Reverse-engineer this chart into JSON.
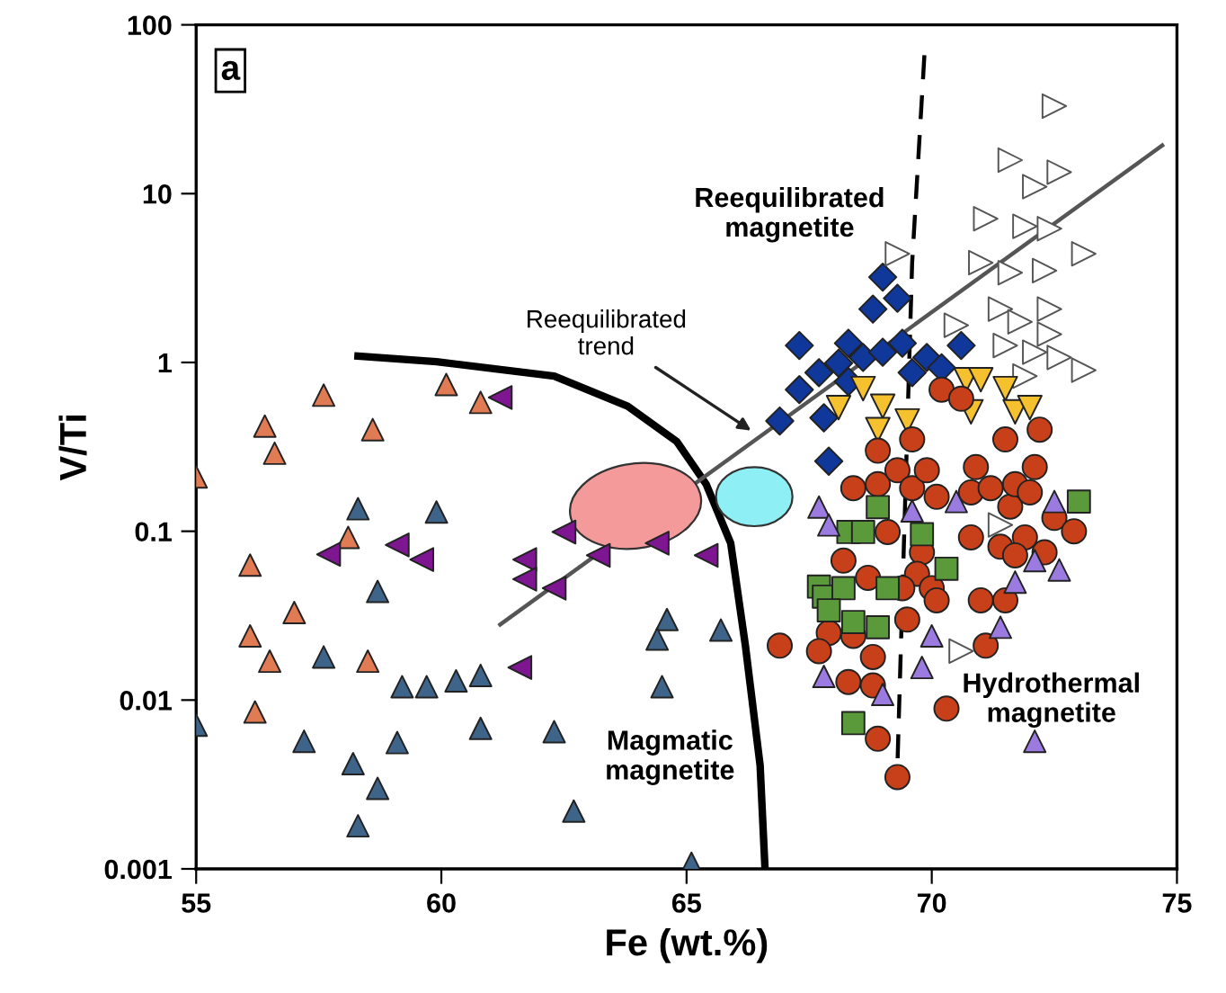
{
  "chart_data": {
    "type": "scatter",
    "xlabel": "Fe (wt.%)",
    "ylabel": "V/Ti",
    "log": "y",
    "xlim": [
      55,
      75
    ],
    "xticks": [
      55,
      60,
      65,
      70,
      75
    ],
    "ylim": [
      0.001,
      100
    ],
    "yticks": [
      0.001,
      0.01,
      0.1,
      1,
      10,
      100
    ],
    "grid": false,
    "legend": false,
    "annotations": [
      "a",
      {
        "text": "Reequilibrated\ntrend",
        "x": 66.4,
        "y": 0.38
      },
      "Reequilibrated\nmagnetite",
      "Magmatic\nmagnetite",
      "Hydrothermal\nmagnetite"
    ],
    "series": [
      {
        "type": "line",
        "color": "#000000",
        "line_style": "solid",
        "marker": "none",
        "x": [
          58.3,
          59.9,
          62.3,
          63.8,
          64.8,
          65.4,
          65.9,
          66.2,
          66.5,
          66.6
        ],
        "values": [
          1.09,
          1.01,
          0.83,
          0.55,
          0.34,
          0.19,
          0.085,
          0.021,
          0.0041,
          0.001
        ]
      },
      {
        "type": "line",
        "color": "#000000",
        "line_style": "dashed",
        "marker": "none",
        "x": [
          69.85,
          69.6,
          69.3
        ],
        "values": [
          66,
          3.9,
          0.0041
        ]
      },
      {
        "type": "line",
        "color": "#555555",
        "line_style": "solid",
        "marker": "none",
        "x": [
          61.2,
          74.7
        ],
        "values": [
          0.028,
          19.3
        ]
      },
      {
        "color": "#e07b53",
        "marker": "triangle",
        "x": [
          55.0,
          56.4,
          56.6,
          57.6,
          58.6,
          60.1,
          60.8,
          58.1,
          56.1,
          57.0,
          56.1,
          56.5,
          58.5,
          56.2
        ],
        "values": [
          0.21,
          0.42,
          0.29,
          0.64,
          0.4,
          0.74,
          0.58,
          0.092,
          0.063,
          0.033,
          0.024,
          0.017,
          0.017,
          0.0085
        ]
      },
      {
        "color": "#3f6489",
        "marker": "triangle",
        "x": [
          55.0,
          58.3,
          59.9,
          58.7,
          57.6,
          59.2,
          59.7,
          60.3,
          60.8,
          57.2,
          59.1,
          60.8,
          62.3,
          58.2,
          58.7,
          58.3,
          62.7,
          64.6,
          64.4,
          65.7,
          64.5,
          65.1
        ],
        "values": [
          0.0071,
          0.136,
          0.13,
          0.044,
          0.018,
          0.012,
          0.012,
          0.013,
          0.014,
          0.0057,
          0.0056,
          0.0068,
          0.0065,
          0.0042,
          0.003,
          0.0018,
          0.0022,
          0.03,
          0.023,
          0.026,
          0.012,
          0.00108
        ]
      },
      {
        "color": "#7d1690",
        "marker": "triangle-left",
        "x": [
          61.2,
          57.7,
          59.1,
          59.6,
          61.7,
          61.7,
          62.3,
          62.5,
          61.6,
          63.2,
          64.4,
          65.4
        ],
        "values": [
          0.62,
          0.073,
          0.083,
          0.068,
          0.068,
          0.052,
          0.046,
          0.099,
          0.0156,
          0.072,
          0.085,
          0.072
        ]
      },
      {
        "color": "#10379a",
        "marker": "diamond",
        "x": [
          69.0,
          69.3,
          68.8,
          67.3,
          68.3,
          68.6,
          68.1,
          67.3,
          67.7,
          69.0,
          69.4,
          69.9,
          70.2,
          70.6,
          66.9,
          67.8,
          68.3,
          69.6,
          67.9
        ],
        "values": [
          3.2,
          2.4,
          2.07,
          1.26,
          1.3,
          1.07,
          0.99,
          0.69,
          0.87,
          1.15,
          1.3,
          1.07,
          0.93,
          1.26,
          0.45,
          0.47,
          0.77,
          0.87,
          0.26
        ]
      },
      {
        "color": "#ffffff",
        "marker": "triangle-right",
        "x": [
          72.5,
          71.6,
          72.6,
          72.1,
          71.1,
          71.9,
          72.4,
          73.1,
          69.3,
          71.0,
          71.6,
          72.3,
          71.4,
          71.8,
          72.4,
          70.5,
          71.5,
          72.1,
          72.6,
          73.1,
          71.9,
          72.4,
          70.6,
          71.4
        ],
        "values": [
          33,
          15.8,
          13.4,
          11.0,
          7.1,
          6.4,
          6.2,
          4.4,
          4.4,
          3.9,
          3.4,
          3.5,
          2.07,
          1.74,
          2.07,
          1.66,
          1.26,
          1.15,
          1.07,
          0.9,
          0.83,
          1.47,
          0.0195,
          0.109
        ]
      },
      {
        "color": "#f5c12e",
        "marker": "triangle-down",
        "x": [
          68.6,
          68.1,
          69.0,
          68.9,
          69.5,
          70.7,
          71.0,
          70.8,
          71.5,
          71.7,
          72.0
        ],
        "values": [
          0.7,
          0.54,
          0.55,
          0.4,
          0.45,
          0.79,
          0.79,
          0.51,
          0.7,
          0.51,
          0.54
        ]
      },
      {
        "color": "#c8401a",
        "marker": "circle",
        "x": [
          68.9,
          68.4,
          68.9,
          69.3,
          69.6,
          69.9,
          70.1,
          70.8,
          70.9,
          71.2,
          71.6,
          71.7,
          72.0,
          72.1,
          72.5,
          72.9,
          69.1,
          69.8,
          70.8,
          71.4,
          71.9,
          71.7,
          72.3,
          68.2,
          68.7,
          69.7,
          69.4,
          70.0,
          70.1,
          71.0,
          71.5,
          69.5,
          66.9,
          67.9,
          67.7,
          68.4,
          68.8,
          71.1,
          68.3,
          68.8,
          70.3,
          68.9,
          69.3,
          70.2,
          70.6,
          71.5,
          72.2,
          69.6
        ],
        "values": [
          0.3,
          0.18,
          0.19,
          0.23,
          0.18,
          0.23,
          0.16,
          0.17,
          0.24,
          0.18,
          0.14,
          0.19,
          0.17,
          0.24,
          0.12,
          0.1,
          0.099,
          0.075,
          0.092,
          0.081,
          0.092,
          0.072,
          0.075,
          0.067,
          0.053,
          0.056,
          0.046,
          0.046,
          0.039,
          0.039,
          0.039,
          0.03,
          0.021,
          0.025,
          0.0195,
          0.024,
          0.018,
          0.021,
          0.0128,
          0.0122,
          0.0089,
          0.0059,
          0.0035,
          0.69,
          0.61,
          0.35,
          0.4,
          0.35
        ]
      },
      {
        "color": "#5a9a3a",
        "marker": "square",
        "x": [
          68.9,
          68.3,
          68.6,
          69.8,
          70.3,
          73.0,
          67.7,
          67.8,
          68.2,
          69.1,
          67.9,
          68.4,
          68.9,
          68.4
        ],
        "values": [
          0.139,
          0.099,
          0.099,
          0.096,
          0.06,
          0.15,
          0.047,
          0.041,
          0.046,
          0.046,
          0.034,
          0.029,
          0.027,
          0.0073
        ]
      },
      {
        "color": "#9b7be0",
        "marker": "triangle",
        "x": [
          67.7,
          67.9,
          69.6,
          70.5,
          72.5,
          72.1,
          72.6,
          71.7,
          70.0,
          71.4,
          69.8,
          67.8,
          69.0,
          72.1
        ],
        "values": [
          0.139,
          0.109,
          0.132,
          0.15,
          0.15,
          0.067,
          0.059,
          0.05,
          0.024,
          0.027,
          0.0156,
          0.0138,
          0.0108,
          0.0057
        ]
      }
    ]
  }
}
